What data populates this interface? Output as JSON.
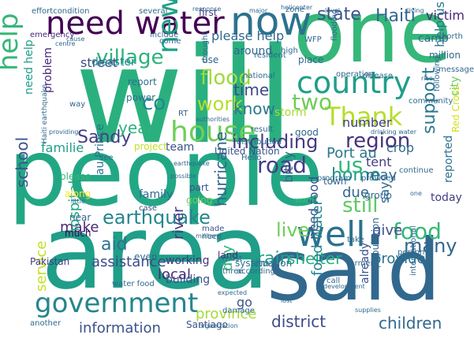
{
  "words": [
    {
      "id": "will",
      "text": "will",
      "color": "#2ab07f",
      "vertical": false
    },
    {
      "id": "people",
      "text": "people",
      "color": "#22a785",
      "vertical": false
    },
    {
      "id": "area",
      "text": "area",
      "color": "#1f9e89",
      "vertical": false
    },
    {
      "id": "said",
      "text": "said",
      "color": "#31688e",
      "vertical": false
    },
    {
      "id": "one",
      "text": "one",
      "color": "#35b779",
      "vertical": false
    },
    {
      "id": "now",
      "text": "now",
      "color": "#2c728e",
      "vertical": false
    },
    {
      "id": "need_water",
      "text": "need water",
      "color": "#440154",
      "vertical": false
    },
    {
      "id": "country",
      "text": "country",
      "color": "#1f9e89",
      "vertical": false
    },
    {
      "id": "house",
      "text": "house",
      "color": "#6ece58",
      "vertical": false
    },
    {
      "id": "government",
      "text": "government",
      "color": "#25858e",
      "vertical": false
    },
    {
      "id": "well",
      "text": "well",
      "color": "#2c728e",
      "vertical": false
    },
    {
      "id": "thank",
      "text": "Thank",
      "color": "#b5de2b",
      "vertical": false
    },
    {
      "id": "help_v",
      "text": "help",
      "color": "#35b779",
      "vertical": true
    },
    {
      "id": "new_v",
      "text": "new",
      "color": "#1fa187",
      "vertical": true
    },
    {
      "id": "flood",
      "text": "flood",
      "color": "#9fda3a",
      "vertical": false
    },
    {
      "id": "village",
      "text": "village",
      "color": "#2db27d",
      "vertical": false
    },
    {
      "id": "earthquake",
      "text": "earthquake",
      "color": "#25858e",
      "vertical": false
    },
    {
      "id": "road",
      "text": "road",
      "color": "#433e85",
      "vertical": false
    },
    {
      "id": "including",
      "text": "including",
      "color": "#443a83",
      "vertical": false
    },
    {
      "id": "region",
      "text": "region",
      "color": "#46337e",
      "vertical": false
    },
    {
      "id": "sandy",
      "text": "Sandy",
      "color": "#433e85",
      "vertical": false
    },
    {
      "id": "haiti",
      "text": "Haiti",
      "color": "#31688e",
      "vertical": false
    },
    {
      "id": "state",
      "text": "state",
      "color": "#3b528b",
      "vertical": false
    },
    {
      "id": "victim",
      "text": "victim",
      "color": "#482878",
      "vertical": false
    },
    {
      "id": "co",
      "text": "co",
      "color": "#25858e",
      "vertical": false
    },
    {
      "id": "work",
      "text": "work",
      "color": "#b5de2b",
      "vertical": false
    },
    {
      "id": "two",
      "text": "two",
      "color": "#6ece58",
      "vertical": false
    },
    {
      "id": "know",
      "text": "know",
      "color": "#2a788e",
      "vertical": false
    },
    {
      "id": "time",
      "text": "time",
      "color": "#3e4a89",
      "vertical": false
    },
    {
      "id": "home",
      "text": "home",
      "color": "#20928c",
      "vertical": false
    },
    {
      "id": "food",
      "text": "food",
      "color": "#35b779",
      "vertical": false
    },
    {
      "id": "many",
      "text": "many",
      "color": "#31688e",
      "vertical": false
    },
    {
      "id": "still",
      "text": "still",
      "color": "#5ec962",
      "vertical": false
    },
    {
      "id": "live",
      "text": "live",
      "color": "#6ece58",
      "vertical": false
    },
    {
      "id": "children",
      "text": "children",
      "color": "#31688e",
      "vertical": false
    },
    {
      "id": "district",
      "text": "district",
      "color": "#3e4a89",
      "vertical": false
    },
    {
      "id": "information",
      "text": "information",
      "color": "#3b528b",
      "vertical": false
    },
    {
      "id": "province",
      "text": "province",
      "color": "#a5db36",
      "vertical": false
    },
    {
      "id": "rain",
      "text": "rain",
      "color": "#1f9e89",
      "vertical": false
    },
    {
      "id": "shelter",
      "text": "shelter",
      "color": "#26ad81",
      "vertical": false
    },
    {
      "id": "year",
      "text": "year",
      "color": "#2db27d",
      "vertical": false
    },
    {
      "id": "support",
      "text": "support",
      "color": "#2a788e",
      "vertical": true
    },
    {
      "id": "school",
      "text": "school",
      "color": "#3b528b",
      "vertical": true
    },
    {
      "id": "please_help",
      "text": "please help",
      "color": "#31688e",
      "vertical": false
    },
    {
      "id": "street",
      "text": "street",
      "color": "#3e4a89",
      "vertical": false
    },
    {
      "id": "disaster",
      "text": "disaster",
      "color": "#25858e",
      "vertical": false
    },
    {
      "id": "port_au",
      "text": "Port au",
      "color": "#2a788e",
      "vertical": false
    },
    {
      "id": "us",
      "text": "us",
      "color": "#35b779",
      "vertical": false
    },
    {
      "id": "tent",
      "text": "tent",
      "color": "#433e85",
      "vertical": false
    },
    {
      "id": "crop",
      "text": "crop",
      "color": "#31688e",
      "vertical": false
    },
    {
      "id": "may",
      "text": "may",
      "color": "#31688e",
      "vertical": false
    },
    {
      "id": "due",
      "text": "due",
      "color": "#31688e",
      "vertical": false
    },
    {
      "id": "give",
      "text": "give",
      "color": "#3b528b",
      "vertical": false
    },
    {
      "id": "provide",
      "text": "provide",
      "color": "#2c728e",
      "vertical": false
    },
    {
      "id": "hurricane",
      "text": "hurricane",
      "color": "#31688e",
      "vertical": true
    },
    {
      "id": "river",
      "text": "river",
      "color": "#46337e",
      "vertical": true
    },
    {
      "id": "day",
      "text": "day",
      "color": "#2db27d",
      "vertical": true
    },
    {
      "id": "storm",
      "text": "storm",
      "color": "#a5db36",
      "vertical": false
    },
    {
      "id": "number",
      "text": "number",
      "color": "#433e85",
      "vertical": false
    },
    {
      "id": "make",
      "text": "make",
      "color": "#482878",
      "vertical": false
    },
    {
      "id": "assistance",
      "text": "assistance",
      "color": "#3e4a89",
      "vertical": false
    },
    {
      "id": "aid",
      "text": "aid",
      "color": "#2c728e",
      "vertical": false
    },
    {
      "id": "local",
      "text": "local",
      "color": "#482878",
      "vertical": false
    },
    {
      "id": "hospital",
      "text": "hospital",
      "color": "#22a785",
      "vertical": true
    },
    {
      "id": "service",
      "text": "service",
      "color": "#c2df23",
      "vertical": true
    },
    {
      "id": "family",
      "text": "family",
      "color": "#31688e",
      "vertical": false
    },
    {
      "id": "familie",
      "text": "familie",
      "color": "#1f9e89",
      "vertical": false
    },
    {
      "id": "team",
      "text": "team",
      "color": "#3b528b",
      "vertical": false
    },
    {
      "id": "project",
      "text": "project",
      "color": "#c2df23",
      "vertical": false
    },
    {
      "id": "working",
      "text": "working",
      "color": "#46337e",
      "vertical": false
    },
    {
      "id": "building",
      "text": "building",
      "color": "#3b528b",
      "vertical": false
    },
    {
      "id": "go",
      "text": "go",
      "color": "#3b528b",
      "vertical": false
    },
    {
      "id": "pakistan",
      "text": "Pakistan",
      "color": "#443a83",
      "vertical": false
    },
    {
      "id": "today",
      "text": "today",
      "color": "#433e85",
      "vertical": false
    },
    {
      "id": "say",
      "text": "say",
      "color": "#31688e",
      "vertical": true
    },
    {
      "id": "reported",
      "text": "reported",
      "color": "#2c728e",
      "vertical": true
    },
    {
      "id": "city",
      "text": "city",
      "color": "#6ece58",
      "vertical": true
    },
    {
      "id": "help_us",
      "text": "help us",
      "color": "#2a788e",
      "vertical": true
    },
    {
      "id": "need_food",
      "text": "need food",
      "color": "#3b528b",
      "vertical": true
    },
    {
      "id": "food_water",
      "text": "food water",
      "color": "#25858e",
      "vertical": true
    },
    {
      "id": "bit_ly",
      "text": "bit ly",
      "color": "#31688e",
      "vertical": true
    },
    {
      "id": "au_prince",
      "text": "au Prince",
      "color": "#2c728e",
      "vertical": true
    },
    {
      "id": "problem",
      "text": "problem",
      "color": "#482878",
      "vertical": true
    },
    {
      "id": "need_help",
      "text": "need help",
      "color": "#1f9e89",
      "vertical": true
    },
    {
      "id": "already",
      "text": "already",
      "color": "#3b528b",
      "vertical": true
    },
    {
      "id": "red_cross",
      "text": "Red Cross",
      "color": "#d0e11c",
      "vertical": true
    },
    {
      "id": "united_nation",
      "text": "United Nation",
      "color": "#3b528b",
      "vertical": false
    },
    {
      "id": "land",
      "text": "land",
      "color": "#482878",
      "vertical": false
    },
    {
      "id": "system",
      "text": "system",
      "color": "#2a788e",
      "vertical": false
    },
    {
      "id": "santiago",
      "text": "Santiago",
      "color": "#3b528b",
      "vertical": false
    },
    {
      "id": "situation",
      "text": "situation",
      "color": "#31688e",
      "vertical": false
    },
    {
      "id": "group",
      "text": "group",
      "color": "#31688e",
      "vertical": false
    },
    {
      "id": "place",
      "text": "place",
      "color": "#31688e",
      "vertical": false
    },
    {
      "id": "camp",
      "text": "camp",
      "color": "#31688e",
      "vertical": false
    },
    {
      "id": "million",
      "text": "million",
      "color": "#31688e",
      "vertical": false
    },
    {
      "id": "several",
      "text": "several",
      "color": "#31688e",
      "vertical": false
    },
    {
      "id": "first",
      "text": "first",
      "color": "#443a83",
      "vertical": false
    },
    {
      "id": "zone",
      "text": "zone",
      "color": "#31688e",
      "vertical": false
    },
    {
      "id": "around",
      "text": "around",
      "color": "#31688e",
      "vertical": false
    },
    {
      "id": "effortcondition",
      "text": "effortcondition",
      "color": "#31688e",
      "vertical": false
    },
    {
      "id": "emergency",
      "text": "emergency",
      "color": "#482878",
      "vertical": false
    },
    {
      "id": "please",
      "text": "please",
      "color": "#35b779",
      "vertical": false
    },
    {
      "id": "along",
      "text": "along",
      "color": "#fde725",
      "vertical": false
    },
    {
      "id": "near",
      "text": "near",
      "color": "#31688e",
      "vertical": false
    },
    {
      "id": "much",
      "text": "much",
      "color": "#440154",
      "vertical": false
    },
    {
      "id": "report",
      "text": "report",
      "color": "#2c728e",
      "vertical": false
    },
    {
      "id": "power",
      "text": "power",
      "color": "#2c728e",
      "vertical": false
    },
    {
      "id": "case",
      "text": "case",
      "color": "#3b528b",
      "vertical": false
    },
    {
      "id": "part",
      "text": "part",
      "color": "#3b528b",
      "vertical": false
    },
    {
      "id": "going",
      "text": "going",
      "color": "#6ece58",
      "vertical": false
    },
    {
      "id": "made",
      "text": "made",
      "color": "#3b528b",
      "vertical": false
    },
    {
      "id": "need",
      "text": "need",
      "color": "#31688e",
      "vertical": false
    },
    {
      "id": "want",
      "text": "want",
      "color": "#35b779",
      "vertical": false
    },
    {
      "id": "town",
      "text": "town",
      "color": "#31688e",
      "vertical": false
    },
    {
      "id": "provided",
      "text": "provided",
      "color": "#31688e",
      "vertical": false
    },
    {
      "id": "continue",
      "text": "continue",
      "color": "#31688e",
      "vertical": false
    },
    {
      "id": "good",
      "text": "good",
      "color": "#31688e",
      "vertical": false
    },
    {
      "id": "take",
      "text": "take",
      "color": "#31688e",
      "vertical": false
    },
    {
      "id": "farmer",
      "text": "farmer",
      "color": "#31688e",
      "vertical": false
    },
    {
      "id": "call",
      "text": "call",
      "color": "#31688e",
      "vertical": false
    },
    {
      "id": "population",
      "text": "population",
      "color": "#31688e",
      "vertical": true
    },
    {
      "id": "international",
      "text": "international",
      "color": "#31688e",
      "vertical": true
    },
    {
      "id": "community",
      "text": "community",
      "color": "#31688e",
      "vertical": false
    },
    {
      "id": "message",
      "text": "message",
      "color": "#31688e",
      "vertical": false
    },
    {
      "id": "disease",
      "text": "disease",
      "color": "#31688e",
      "vertical": false
    },
    {
      "id": "include",
      "text": "include",
      "color": "#31688e",
      "vertical": false
    },
    {
      "id": "even",
      "text": "even",
      "color": "#31688e",
      "vertical": false
    },
    {
      "id": "use",
      "text": "use",
      "color": "#31688e",
      "vertical": false
    },
    {
      "id": "result",
      "text": "result",
      "color": "#31688e",
      "vertical": false
    },
    {
      "id": "another",
      "text": "another",
      "color": "#31688e",
      "vertical": false
    },
    {
      "id": "water_food",
      "text": "water food",
      "color": "#31688e",
      "vertical": false
    },
    {
      "id": "hello",
      "text": "Hello",
      "color": "#31688e",
      "vertical": false
    },
    {
      "id": "must",
      "text": "must",
      "color": "#31688e",
      "vertical": false
    },
    {
      "id": "see",
      "text": "see",
      "color": "#31688e",
      "vertical": false
    },
    {
      "id": "damage",
      "text": "damage",
      "color": "#31688e",
      "vertical": false
    },
    {
      "id": "distribution",
      "text": "distribution",
      "color": "#31688e",
      "vertical": false
    },
    {
      "id": "operation",
      "text": "operation",
      "color": "#31688e",
      "vertical": false
    },
    {
      "id": "resident",
      "text": "resident",
      "color": "#31688e",
      "vertical": false
    },
    {
      "id": "national",
      "text": "national",
      "color": "#31688e",
      "vertical": false
    },
    {
      "id": "wfp",
      "text": "WFP",
      "color": "#31688e",
      "vertical": false
    },
    {
      "id": "way",
      "text": "way",
      "color": "#31688e",
      "vertical": false
    },
    {
      "id": "come",
      "text": "come",
      "color": "#31688e",
      "vertical": false
    },
    {
      "id": "drought",
      "text": "drought",
      "color": "#31688e",
      "vertical": true
    },
    {
      "id": "flooding",
      "text": "flooding",
      "color": "#31688e",
      "vertical": true
    },
    {
      "id": "north",
      "text": "north",
      "color": "#31688e",
      "vertical": false
    },
    {
      "id": "following",
      "text": "following",
      "color": "#31688e",
      "vertical": true
    },
    {
      "id": "high",
      "text": "high",
      "color": "#31688e",
      "vertical": false
    },
    {
      "id": "person",
      "text": "person",
      "color": "#31688e",
      "vertical": false
    },
    {
      "id": "three",
      "text": "three",
      "color": "#31688e",
      "vertical": false
    },
    {
      "id": "according",
      "text": "according",
      "color": "#31688e",
      "vertical": false
    },
    {
      "id": "rt",
      "text": "RT",
      "color": "#31688e",
      "vertical": false
    },
    {
      "id": "program",
      "text": "program",
      "color": "#31688e",
      "vertical": false
    },
    {
      "id": "response",
      "text": "response",
      "color": "#31688e",
      "vertical": false
    },
    {
      "id": "major",
      "text": "major",
      "color": "#31688e",
      "vertical": false
    },
    {
      "id": "helicopter",
      "text": "helicopter",
      "color": "#31688e",
      "vertical": false
    },
    {
      "id": "military",
      "text": "military",
      "color": "#31688e",
      "vertical": false
    },
    {
      "id": "possible",
      "text": "possible",
      "color": "#31688e",
      "vertical": false
    },
    {
      "id": "level",
      "text": "level",
      "color": "#31688e",
      "vertical": false
    },
    {
      "id": "rice",
      "text": "rice",
      "color": "#31688e",
      "vertical": false
    },
    {
      "id": "living",
      "text": "living",
      "color": "#31688e",
      "vertical": false
    },
    {
      "id": "cause",
      "text": "cause",
      "color": "#31688e",
      "vertical": false
    },
    {
      "id": "providing",
      "text": "providing",
      "color": "#31688e",
      "vertical": false
    },
    {
      "id": "organization",
      "text": "organization",
      "color": "#31688e",
      "vertical": false
    },
    {
      "id": "supplies",
      "text": "supplies",
      "color": "#31688e",
      "vertical": false
    },
    {
      "id": "development",
      "text": "development",
      "color": "#31688e",
      "vertical": false
    },
    {
      "id": "lost",
      "text": "lost",
      "color": "#31688e",
      "vertical": false
    },
    {
      "id": "authorities",
      "text": "authorities",
      "color": "#31688e",
      "vertical": false
    },
    {
      "id": "little",
      "text": "little",
      "color": "#31688e",
      "vertical": false
    },
    {
      "id": "haiti_earthquake",
      "text": "Haiti earthquake",
      "color": "#31688e",
      "vertical": true
    },
    {
      "id": "centre",
      "text": "centre",
      "color": "#31688e",
      "vertical": false
    },
    {
      "id": "earthquake_small",
      "text": "earthquake",
      "color": "#31688e",
      "vertical": false
    },
    {
      "id": "drinking_water",
      "text": "drinking water",
      "color": "#31688e",
      "vertical": false
    },
    {
      "id": "one_small",
      "text": "one",
      "color": "#31688e",
      "vertical": false
    },
    {
      "id": "expected",
      "text": "expected",
      "color": "#31688e",
      "vertical": false
    }
  ]
}
